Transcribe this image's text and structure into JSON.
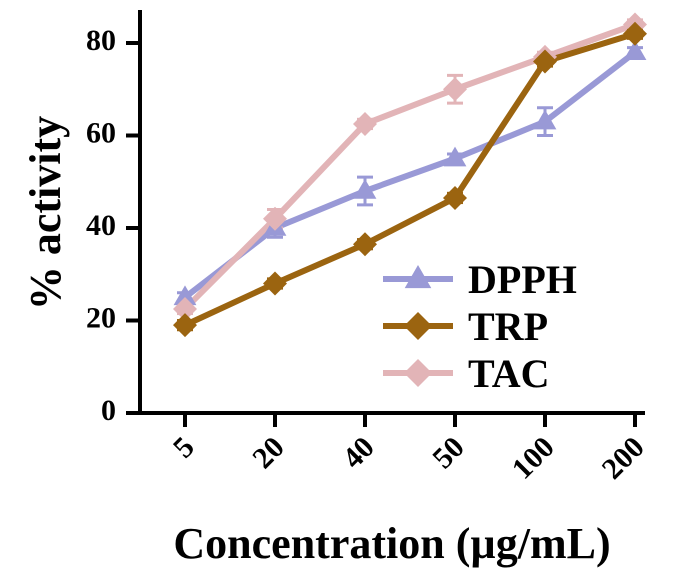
{
  "chart_data": {
    "type": "line",
    "title": "",
    "xlabel": "Concentration (µg/mL)",
    "ylabel": "% activity",
    "categories": [
      "5",
      "20",
      "40",
      "50",
      "100",
      "200"
    ],
    "ylim": [
      0,
      85
    ],
    "yticks": [
      "0",
      "20",
      "40",
      "60",
      "80"
    ],
    "legend_position": "lower-right",
    "series": [
      {
        "name": "DPPH",
        "marker": "triangle",
        "color": "#9999d6",
        "values": [
          25,
          40,
          48,
          55,
          63,
          78
        ],
        "errors": [
          1,
          2,
          3,
          1,
          3,
          1
        ]
      },
      {
        "name": "TRP",
        "marker": "diamond",
        "color": "#9b6410",
        "values": [
          19,
          28,
          36.5,
          46.5,
          76,
          82
        ],
        "errors": [
          1,
          1,
          1,
          1,
          1,
          1
        ]
      },
      {
        "name": "TAC",
        "marker": "diamond",
        "color": "#e2b4b7",
        "values": [
          22.5,
          42,
          62.5,
          70,
          77,
          84
        ],
        "errors": [
          1,
          2,
          1,
          3,
          1,
          1
        ]
      }
    ]
  }
}
